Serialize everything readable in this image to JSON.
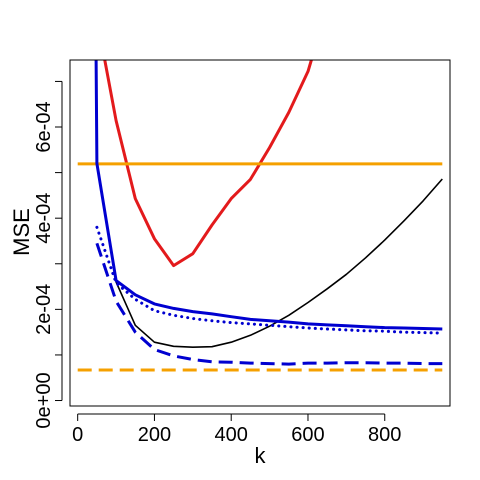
{
  "chart_data": {
    "type": "line",
    "title": "",
    "xlabel": "k",
    "ylabel": "MSE",
    "xlim": [
      -20,
      970
    ],
    "ylim": [
      -1.2e-05,
      0.000747
    ],
    "x_ticks": [
      {
        "value": 0,
        "label": "0"
      },
      {
        "value": 200,
        "label": "200"
      },
      {
        "value": 400,
        "label": "400"
      },
      {
        "value": 600,
        "label": "600"
      },
      {
        "value": 800,
        "label": "800"
      }
    ],
    "y_ticks": [
      {
        "value": 0,
        "label": "0e+00"
      },
      {
        "value": 0.0001,
        "label": ""
      },
      {
        "value": 0.0002,
        "label": "2e-04"
      },
      {
        "value": 0.0003,
        "label": ""
      },
      {
        "value": 0.0004,
        "label": "4e-04"
      },
      {
        "value": 0.0005,
        "label": ""
      },
      {
        "value": 0.0006,
        "label": "6e-04"
      },
      {
        "value": 0.0007,
        "label": ""
      }
    ],
    "grid": false,
    "legend": "none",
    "series": [
      {
        "color": "#E31A1C",
        "style": "solid",
        "width": 3,
        "points": [
          [
            70,
            0.00075
          ],
          [
            100,
            0.000614
          ],
          [
            150,
            0.000443
          ],
          [
            200,
            0.000355
          ],
          [
            250,
            0.000296
          ],
          [
            300,
            0.000322
          ],
          [
            350,
            0.000385
          ],
          [
            400,
            0.000443
          ],
          [
            450,
            0.000485
          ],
          [
            500,
            0.000555
          ],
          [
            550,
            0.000632
          ],
          [
            600,
            0.000722
          ],
          [
            610,
            0.00075
          ]
        ]
      },
      {
        "color": "#F5A000",
        "style": "solid",
        "width": 3,
        "points": [
          [
            0,
            0.000519
          ],
          [
            950,
            0.000519
          ]
        ]
      },
      {
        "color": "#F5A000",
        "style": "dashed",
        "width": 3,
        "points": [
          [
            0,
            6.7e-05
          ],
          [
            950,
            6.7e-05
          ]
        ]
      },
      {
        "color": "#000000",
        "style": "solid",
        "width": 1.6,
        "points": [
          [
            50,
            0.00052
          ],
          [
            100,
            0.00026
          ],
          [
            150,
            0.000165
          ],
          [
            200,
            0.000128
          ],
          [
            250,
            0.000119
          ],
          [
            300,
            0.000117
          ],
          [
            350,
            0.000118
          ],
          [
            400,
            0.000128
          ],
          [
            450,
            0.000143
          ],
          [
            500,
            0.000163
          ],
          [
            550,
            0.000187
          ],
          [
            600,
            0.000215
          ],
          [
            650,
            0.000245
          ],
          [
            700,
            0.000277
          ],
          [
            750,
            0.000313
          ],
          [
            800,
            0.000352
          ],
          [
            850,
            0.000394
          ],
          [
            900,
            0.000438
          ],
          [
            950,
            0.000486
          ]
        ]
      },
      {
        "color": "#0000D0",
        "style": "solid",
        "width": 3,
        "points": [
          [
            48,
            0.00075
          ],
          [
            50,
            0.00052
          ],
          [
            100,
            0.000263
          ],
          [
            150,
            0.000232
          ],
          [
            200,
            0.000212
          ],
          [
            250,
            0.000202
          ],
          [
            300,
            0.000195
          ],
          [
            350,
            0.00019
          ],
          [
            400,
            0.000184
          ],
          [
            450,
            0.000178
          ],
          [
            500,
            0.000175
          ],
          [
            550,
            0.000172
          ],
          [
            600,
            0.000168
          ],
          [
            650,
            0.000166
          ],
          [
            700,
            0.000164
          ],
          [
            750,
            0.000162
          ],
          [
            800,
            0.00016
          ],
          [
            850,
            0.000159
          ],
          [
            900,
            0.000158
          ],
          [
            950,
            0.000157
          ]
        ]
      },
      {
        "color": "#0000D0",
        "style": "dotted",
        "width": 3,
        "points": [
          [
            50,
            0.00038
          ],
          [
            100,
            0.000258
          ],
          [
            150,
            0.000222
          ],
          [
            200,
            0.000197
          ],
          [
            250,
            0.000187
          ],
          [
            300,
            0.00018
          ],
          [
            350,
            0.000175
          ],
          [
            400,
            0.000171
          ],
          [
            450,
            0.000168
          ],
          [
            500,
            0.000165
          ],
          [
            550,
            0.000162
          ],
          [
            600,
            0.000159
          ],
          [
            650,
            0.000157
          ],
          [
            700,
            0.000155
          ],
          [
            750,
            0.000153
          ],
          [
            800,
            0.000152
          ],
          [
            850,
            0.00015
          ],
          [
            900,
            0.000149
          ],
          [
            950,
            0.000148
          ]
        ]
      },
      {
        "color": "#0000D0",
        "style": "dashed",
        "width": 3,
        "points": [
          [
            50,
            0.000345
          ],
          [
            100,
            0.000218
          ],
          [
            150,
            0.00015
          ],
          [
            200,
            0.000112
          ],
          [
            250,
            9.8e-05
          ],
          [
            300,
            9e-05
          ],
          [
            350,
            8.5e-05
          ],
          [
            400,
            8.4e-05
          ],
          [
            450,
            8.2e-05
          ],
          [
            500,
            8.1e-05
          ],
          [
            550,
            8e-05
          ],
          [
            600,
            8.2e-05
          ],
          [
            650,
            8.2e-05
          ],
          [
            700,
            8.3e-05
          ],
          [
            750,
            8.3e-05
          ],
          [
            800,
            8.2e-05
          ],
          [
            850,
            8.2e-05
          ],
          [
            900,
            8.1e-05
          ],
          [
            950,
            8.1e-05
          ]
        ]
      }
    ]
  }
}
